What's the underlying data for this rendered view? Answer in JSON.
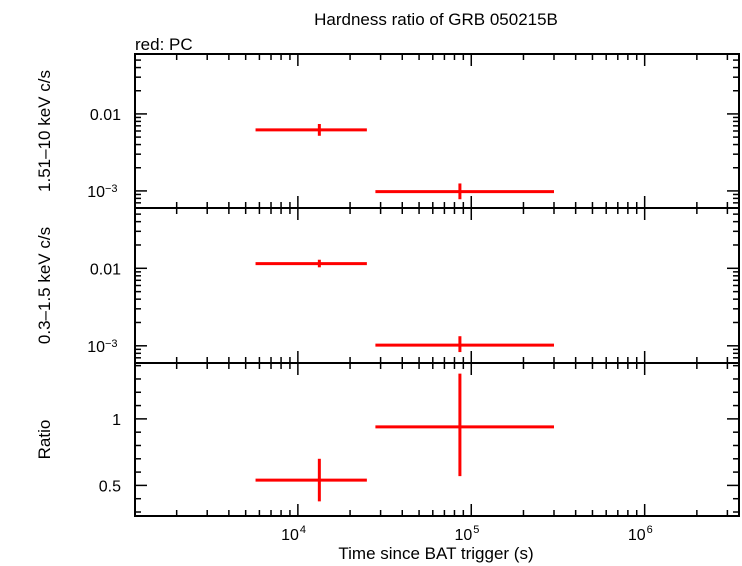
{
  "title": "Hardness ratio of GRB 050215B",
  "subtitle": "red: PC",
  "xlabel": "Time since BAT trigger (s)",
  "colors": {
    "data": "#ff0000",
    "axes": "#000000"
  },
  "chart_data": [
    {
      "type": "scatter",
      "panel": "top",
      "ylabel": "1.51–10 keV c/s",
      "xscale": "log",
      "yscale": "log",
      "xlim": [
        1150,
        3500000
      ],
      "ylim": [
        0.0006,
        0.06
      ],
      "yticks_major": [
        {
          "value": 0.01,
          "label": "0.01"
        },
        {
          "value": 0.001,
          "base": "10",
          "exp": "−3"
        }
      ],
      "series": [
        {
          "name": "PC",
          "points": [
            {
              "x": 13300,
              "xlo": 5700,
              "xhi": 25000,
              "y": 0.0062,
              "ylo": 0.0052,
              "yhi": 0.0074
            },
            {
              "x": 86000,
              "xlo": 28000,
              "xhi": 300000,
              "y": 0.00098,
              "ylo": 0.00078,
              "yhi": 0.00125
            }
          ]
        }
      ]
    },
    {
      "type": "scatter",
      "panel": "middle",
      "ylabel": "0.3–1.5 keV c/s",
      "xscale": "log",
      "yscale": "log",
      "xlim": [
        1150,
        3500000
      ],
      "ylim": [
        0.0006,
        0.06
      ],
      "yticks_major": [
        {
          "value": 0.01,
          "label": "0.01"
        },
        {
          "value": 0.001,
          "base": "10",
          "exp": "−3"
        }
      ],
      "series": [
        {
          "name": "PC",
          "points": [
            {
              "x": 13300,
              "xlo": 5700,
              "xhi": 25000,
              "y": 0.0115,
              "ylo": 0.0103,
              "yhi": 0.0129
            },
            {
              "x": 86000,
              "xlo": 28000,
              "xhi": 300000,
              "y": 0.00102,
              "ylo": 0.00083,
              "yhi": 0.00133
            }
          ]
        }
      ]
    },
    {
      "type": "scatter",
      "panel": "bottom",
      "ylabel": "Ratio",
      "xscale": "log",
      "yscale": "linear",
      "xlim": [
        1150,
        3500000
      ],
      "ylim": [
        0.27,
        1.42
      ],
      "yticks_major": [
        {
          "value": 0.5,
          "label": "0.5"
        },
        {
          "value": 1,
          "label": "1"
        }
      ],
      "xticks_major": [
        {
          "value": 10000,
          "base": "10",
          "exp": "4"
        },
        {
          "value": 100000,
          "base": "10",
          "exp": "5"
        },
        {
          "value": 1000000,
          "base": "10",
          "exp": "6"
        }
      ],
      "series": [
        {
          "name": "PC",
          "points": [
            {
              "x": 13300,
              "xlo": 5700,
              "xhi": 25000,
              "y": 0.54,
              "ylo": 0.38,
              "yhi": 0.7
            },
            {
              "x": 86000,
              "xlo": 28000,
              "xhi": 300000,
              "y": 0.94,
              "ylo": 0.57,
              "yhi": 1.34
            }
          ]
        }
      ]
    }
  ]
}
